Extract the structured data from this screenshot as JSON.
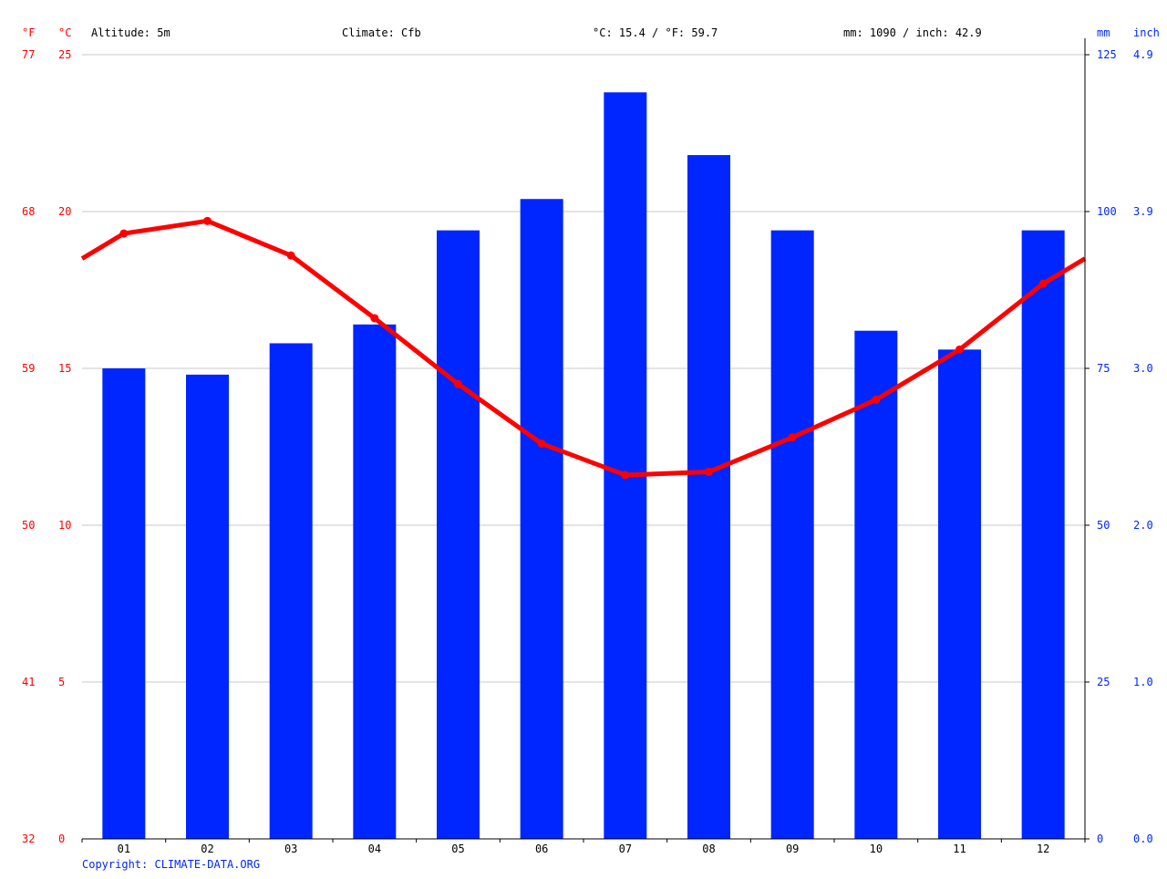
{
  "header": {
    "altitude": "Altitude: 5m",
    "climate": "Climate: Cfb",
    "temp_avg": "°C: 15.4 / °F: 59.7",
    "precip_total": "mm: 1090 / inch: 42.9"
  },
  "copyright": "Copyright: CLIMATE-DATA.ORG",
  "colors": {
    "temperature": "#ff0000",
    "precipitation": "#0026ff",
    "grid": "#c8c8c8"
  },
  "chart_data": {
    "type": "bar+line",
    "categories": [
      "01",
      "02",
      "03",
      "04",
      "05",
      "06",
      "07",
      "08",
      "09",
      "10",
      "11",
      "12"
    ],
    "series": [
      {
        "name": "mm",
        "type": "bar",
        "axis": "right",
        "values": [
          75,
          74,
          79,
          82,
          97,
          102,
          119,
          109,
          97,
          81,
          78,
          97
        ]
      },
      {
        "name": "°C",
        "type": "line",
        "axis": "left",
        "values": [
          19.3,
          19.7,
          18.6,
          16.6,
          14.5,
          12.6,
          11.6,
          11.7,
          12.8,
          14.0,
          15.6,
          17.7
        ]
      }
    ],
    "left_axis": {
      "unit_f": "°F",
      "unit_c": "°C",
      "ylim": [
        0,
        25
      ],
      "ticks_c": [
        "0",
        "5",
        "10",
        "15",
        "20",
        "25"
      ],
      "ticks_f": [
        "32",
        "41",
        "50",
        "59",
        "68",
        "77"
      ]
    },
    "right_axis": {
      "unit_mm": "mm",
      "unit_inch": "inch",
      "ylim": [
        0,
        125
      ],
      "ticks_mm": [
        "0",
        "25",
        "50",
        "75",
        "100",
        "125"
      ],
      "ticks_inch": [
        "0.0",
        "1.0",
        "2.0",
        "3.0",
        "3.9",
        "4.9"
      ]
    },
    "grid": true
  }
}
